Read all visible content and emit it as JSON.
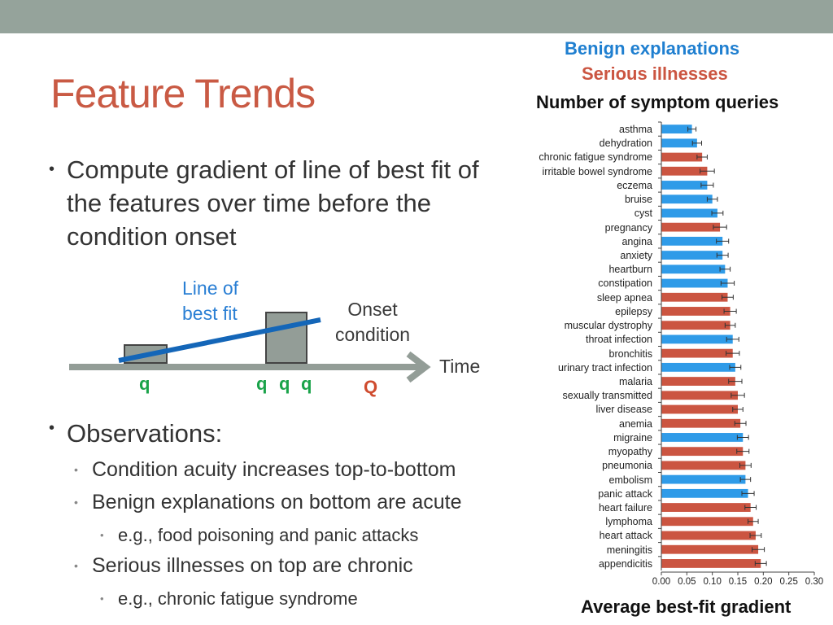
{
  "slide": {
    "title": "Feature Trends",
    "bullet_main": "Compute gradient of line of best fit of the features over time before the condition onset",
    "observations_label": "Observations:",
    "sub_bullets": [
      "Condition acuity increases top-to-bottom",
      "Benign explanations on bottom are acute",
      "Serious illnesses on top are chronic"
    ],
    "sub_sub_bullets": [
      "e.g., food poisoning and panic attacks",
      "e.g., chronic fatigue syndrome"
    ]
  },
  "diagram": {
    "line_label_1": "Line of",
    "line_label_2": "best fit",
    "onset_label_1": "Onset",
    "onset_label_2": "condition",
    "time_label": "Time",
    "q_labels": [
      "q",
      "q",
      "q",
      "q"
    ],
    "onset_q": "Q"
  },
  "legend": {
    "benign": "Benign explanations",
    "serious": "Serious illnesses",
    "subtitle": "Number of symptom queries"
  },
  "colors": {
    "title": "#c95a44",
    "benign": "#2f9be8",
    "serious": "#cb5541",
    "topbar": "#95a39b",
    "q": "#1aa34a",
    "diagram_box": "#939d97",
    "arrow": "#939d97",
    "fit_line": "#1466b8"
  },
  "chart_data": {
    "type": "bar",
    "orientation": "horizontal",
    "xlabel": "Average best-fit gradient",
    "xlim": [
      0,
      0.3
    ],
    "xticks": [
      "0.00",
      "0.05",
      "0.10",
      "0.15",
      "0.20",
      "0.25",
      "0.30"
    ],
    "categories": [
      "asthma",
      "dehydration",
      "chronic fatigue syndrome",
      "irritable bowel syndrome",
      "eczema",
      "bruise",
      "cyst",
      "pregnancy",
      "angina",
      "anxiety",
      "heartburn",
      "constipation",
      "sleep apnea",
      "epilepsy",
      "muscular dystrophy",
      "throat infection",
      "bronchitis",
      "urinary tract infection",
      "malaria",
      "sexually transmitted",
      "liver disease",
      "anemia",
      "migraine",
      "myopathy",
      "pneumonia",
      "embolism",
      "panic attack",
      "heart failure",
      "lymphoma",
      "heart attack",
      "meningitis",
      "appendicitis"
    ],
    "groups": [
      "benign",
      "benign",
      "serious",
      "serious",
      "benign",
      "benign",
      "benign",
      "serious",
      "benign",
      "benign",
      "benign",
      "benign",
      "serious",
      "serious",
      "serious",
      "benign",
      "serious",
      "benign",
      "serious",
      "serious",
      "serious",
      "serious",
      "benign",
      "serious",
      "serious",
      "benign",
      "benign",
      "serious",
      "serious",
      "serious",
      "serious",
      "serious"
    ],
    "values": [
      0.06,
      0.07,
      0.08,
      0.09,
      0.09,
      0.1,
      0.11,
      0.115,
      0.12,
      0.12,
      0.125,
      0.13,
      0.13,
      0.135,
      0.135,
      0.14,
      0.14,
      0.145,
      0.145,
      0.15,
      0.15,
      0.155,
      0.16,
      0.16,
      0.165,
      0.165,
      0.17,
      0.175,
      0.18,
      0.185,
      0.19,
      0.195
    ],
    "errors": [
      0.008,
      0.009,
      0.01,
      0.014,
      0.012,
      0.01,
      0.011,
      0.013,
      0.012,
      0.011,
      0.01,
      0.013,
      0.011,
      0.012,
      0.01,
      0.012,
      0.013,
      0.011,
      0.013,
      0.013,
      0.01,
      0.011,
      0.011,
      0.012,
      0.011,
      0.01,
      0.012,
      0.011,
      0.01,
      0.011,
      0.012,
      0.011
    ],
    "series": [
      {
        "name": "Benign explanations",
        "group": "benign"
      },
      {
        "name": "Serious illnesses",
        "group": "serious"
      }
    ]
  }
}
